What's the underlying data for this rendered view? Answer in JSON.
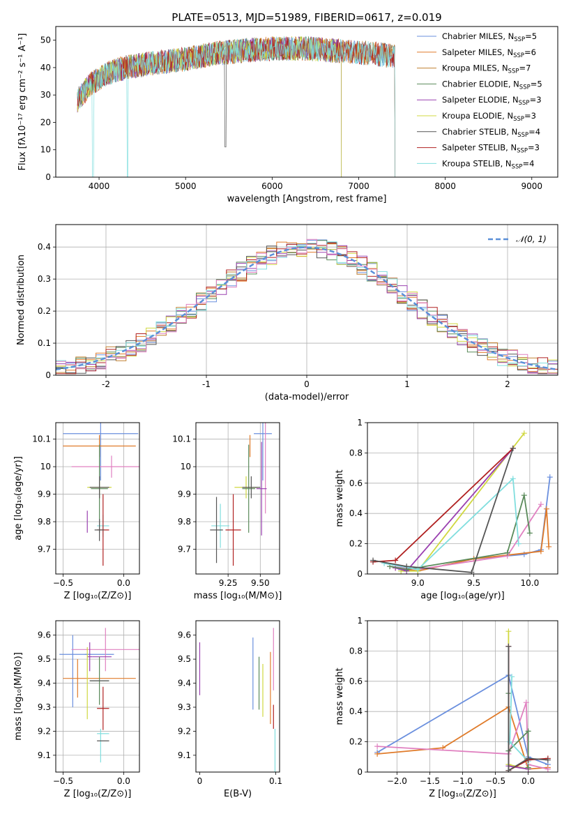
{
  "colors": [
    "#6a8fde",
    "#e07b2a",
    "#c08030",
    "#5a8a5a",
    "#9a40b0",
    "#d0d840",
    "#555555",
    "#b02020",
    "#80dede",
    "#e080c0"
  ],
  "chart_data": [
    {
      "id": "spectrum",
      "type": "line",
      "title": "PLATE=0513, MJD=51989, FIBERID=0617, z=0.019",
      "xlabel": "wavelength [Angstrom, rest frame]",
      "ylabel": "Flux [fλ10⁻¹⁷ erg cm⁻² s⁻¹ A⁻¹]",
      "xlim": [
        3500,
        9300
      ],
      "ylim": [
        0,
        55
      ],
      "xticks": [
        4000,
        5000,
        6000,
        7000,
        8000,
        9000
      ],
      "yticks": [
        0,
        10,
        20,
        30,
        40,
        50
      ],
      "legend_position": "upper-right",
      "continuum": {
        "x": [
          3750,
          3900,
          4100,
          4300,
          4500,
          4700,
          5000,
          5300,
          5600,
          6000,
          6400,
          6800,
          7200,
          7420
        ],
        "y": [
          28,
          34,
          38,
          40,
          41,
          42,
          43,
          45,
          46,
          47,
          47,
          46,
          45,
          44
        ]
      },
      "series": [
        {
          "name": "Chabrier MILES, N",
          "sub": "SSP",
          "suffix": "=5",
          "xmax": 7420
        },
        {
          "name": "Salpeter MILES, N",
          "sub": "SSP",
          "suffix": "=6",
          "xmax": 7420
        },
        {
          "name": "Kroupa MILES, N",
          "sub": "SSP",
          "suffix": "=7",
          "xmax": 7420
        },
        {
          "name": "Chabrier ELODIE, N",
          "sub": "SSP",
          "suffix": "=5",
          "xmax": 6800
        },
        {
          "name": "Salpeter ELODIE, N",
          "sub": "SSP",
          "suffix": "=3",
          "xmax": 6800
        },
        {
          "name": "Kroupa ELODIE, N",
          "sub": "SSP",
          "suffix": "=3",
          "xmax": 6800
        },
        {
          "name": "Chabrier STELIB, N",
          "sub": "SSP",
          "suffix": "=4",
          "xmax": 7420
        },
        {
          "name": "Salpeter STELIB, N",
          "sub": "SSP",
          "suffix": "=3",
          "xmax": 7420
        },
        {
          "name": "Kroupa STELIB, N",
          "sub": "SSP",
          "suffix": "=4",
          "xmax": 7420
        }
      ]
    },
    {
      "id": "residuals",
      "type": "line",
      "xlabel": "(data-model)/error",
      "ylabel": "Normed distribution",
      "xlim": [
        -2.5,
        2.5
      ],
      "ylim": [
        0,
        0.47
      ],
      "xticks": [
        -2,
        -1,
        0,
        1,
        2
      ],
      "yticks": [
        0.0,
        0.1,
        0.2,
        0.3,
        0.4
      ],
      "grid": true,
      "legend": "𝒩(0, 1)",
      "legend_position": "upper-right",
      "reference": {
        "type": "gaussian",
        "mean": 0,
        "sigma": 1
      },
      "bin_width": 0.1
    },
    {
      "id": "age-vs-Z",
      "type": "scatter",
      "xlabel": "Z [log₁₀(Z/Z⊙)]",
      "ylabel": "age  [log₁₀(age/yr)]",
      "xlim": [
        -0.56,
        0.13
      ],
      "ylim": [
        9.61,
        10.16
      ],
      "xticks": [
        -0.5,
        0.0
      ],
      "xticklabels": [
        "−0.5",
        "0.0"
      ],
      "yticks": [
        9.7,
        9.8,
        9.9,
        10.0,
        10.1
      ],
      "grid": true,
      "points": [
        {
          "c": 0,
          "x": -0.19,
          "y": 10.12,
          "xerr": 0.31,
          "yerr": 0.17
        },
        {
          "c": 1,
          "x": -0.2,
          "y": 10.075,
          "xerr": 0.3,
          "yerr": 0.04
        },
        {
          "c": 9,
          "x": -0.1,
          "y": 10.0,
          "xerr": 0.33,
          "yerr": 0.04
        },
        {
          "c": 5,
          "x": -0.2,
          "y": 9.925,
          "xerr": 0.1,
          "yerr": 0.04
        },
        {
          "c": 3,
          "x": -0.2,
          "y": 9.92,
          "xerr": 0.07,
          "yerr": 0.16
        },
        {
          "c": 6,
          "x": -0.2,
          "y": 9.925,
          "xerr": 0.08,
          "yerr": 0.04
        },
        {
          "c": 4,
          "x": -0.3,
          "y": 9.8,
          "xerr": 0.0,
          "yerr": 0.04
        },
        {
          "c": 8,
          "x": -0.17,
          "y": 9.785,
          "xerr": 0.05,
          "yerr": 0.04
        },
        {
          "c": 7,
          "x": -0.17,
          "y": 9.77,
          "xerr": 0.05,
          "yerr": 0.13
        },
        {
          "c": 6,
          "x": -0.2,
          "y": 9.77,
          "xerr": 0.04,
          "yerr": 0.04
        }
      ]
    },
    {
      "id": "age-vs-mass",
      "type": "scatter",
      "xlabel": "mass [log₁₀(M/M⊙)]",
      "ylabel": "",
      "xlim": [
        9.0,
        9.65
      ],
      "ylim": [
        9.61,
        10.16
      ],
      "xticks": [
        9.25,
        9.5
      ],
      "xticklabels": [
        "9.25",
        "9.50"
      ],
      "yticks": [
        9.7,
        9.8,
        9.9,
        10.0,
        10.1
      ],
      "grid": true,
      "points": [
        {
          "c": 0,
          "x": 9.52,
          "y": 10.12,
          "xerr": 0.07,
          "yerr": 0.17
        },
        {
          "c": 1,
          "x": 9.42,
          "y": 10.075,
          "xerr": 0.0,
          "yerr": 0.04
        },
        {
          "c": 9,
          "x": 9.54,
          "y": 10.0,
          "xerr": 0.0,
          "yerr": 0.17
        },
        {
          "c": 5,
          "x": 9.39,
          "y": 9.925,
          "xerr": 0.09,
          "yerr": 0.04
        },
        {
          "c": 3,
          "x": 9.41,
          "y": 9.92,
          "xerr": 0.05,
          "yerr": 0.16
        },
        {
          "c": 4,
          "x": 9.51,
          "y": 9.92,
          "xerr": 0.04,
          "yerr": 0.17
        },
        {
          "c": 6,
          "x": 9.43,
          "y": 9.925,
          "xerr": 0.07,
          "yerr": 0.04
        },
        {
          "c": 8,
          "x": 9.19,
          "y": 9.785,
          "xerr": 0.07,
          "yerr": 0.08
        },
        {
          "c": 7,
          "x": 9.29,
          "y": 9.77,
          "xerr": 0.06,
          "yerr": 0.13
        },
        {
          "c": 6,
          "x": 9.16,
          "y": 9.77,
          "xerr": 0.05,
          "yerr": 0.12
        }
      ]
    },
    {
      "id": "weight-vs-age",
      "type": "line",
      "xlabel": "age  [log₁₀(age/yr)]",
      "ylabel": "mass weight",
      "xlim": [
        8.55,
        10.25
      ],
      "ylim": [
        0,
        1.0
      ],
      "xticks": [
        9.0,
        9.5,
        10.0
      ],
      "xticklabels": [
        "9.0",
        "9.5",
        "10.0"
      ],
      "yticks": [
        0.0,
        0.2,
        0.4,
        0.6,
        0.8,
        1.0
      ],
      "grid": true,
      "series": [
        {
          "c": 0,
          "x": [
            8.85,
            9.0,
            9.5,
            9.95,
            10.1,
            10.18
          ],
          "y": [
            0.03,
            0.02,
            0.1,
            0.13,
            0.16,
            0.64
          ]
        },
        {
          "c": 1,
          "x": [
            8.8,
            9.0,
            9.5,
            10.1,
            10.15,
            10.17
          ],
          "y": [
            0.04,
            0.02,
            0.1,
            0.15,
            0.43,
            0.18
          ]
        },
        {
          "c": 9,
          "x": [
            8.75,
            9.0,
            9.8,
            10.1
          ],
          "y": [
            0.05,
            0.03,
            0.12,
            0.46
          ]
        },
        {
          "c": 5,
          "x": [
            8.85,
            9.0,
            9.95
          ],
          "y": [
            0.02,
            0.02,
            0.93
          ]
        },
        {
          "c": 4,
          "x": [
            8.8,
            8.9,
            9.85
          ],
          "y": [
            0.04,
            0.02,
            0.83
          ]
        },
        {
          "c": 3,
          "x": [
            8.75,
            8.9,
            9.8,
            9.95,
            10.0
          ],
          "y": [
            0.05,
            0.03,
            0.14,
            0.52,
            0.27
          ]
        },
        {
          "c": 8,
          "x": [
            8.7,
            9.0,
            9.85,
            9.9
          ],
          "y": [
            0.07,
            0.03,
            0.63,
            0.2
          ]
        },
        {
          "c": 7,
          "x": [
            8.6,
            8.8,
            9.85
          ],
          "y": [
            0.08,
            0.09,
            0.83
          ]
        },
        {
          "c": 6,
          "x": [
            8.6,
            8.9,
            9.48,
            9.85
          ],
          "y": [
            0.09,
            0.05,
            0.01,
            0.83
          ]
        }
      ]
    },
    {
      "id": "mass-vs-Z",
      "type": "scatter",
      "xlabel": "Z [log₁₀(Z/Z⊙)]",
      "ylabel": "mass [log₁₀(M/M⊙)]",
      "xlim": [
        -0.56,
        0.13
      ],
      "ylim": [
        9.03,
        9.66
      ],
      "xticks": [
        -0.5,
        0.0
      ],
      "xticklabels": [
        "−0.5",
        "0.0"
      ],
      "yticks": [
        9.1,
        9.2,
        9.3,
        9.4,
        9.5,
        9.6
      ],
      "grid": true,
      "points": [
        {
          "c": 0,
          "x": -0.4,
          "y": 9.52,
          "xerr": 0.13,
          "yerr": 0.0
        },
        {
          "c": 0,
          "x": -0.2,
          "y": 9.52,
          "xerr": 0.12,
          "yerr": 0.0
        },
        {
          "c": 0,
          "x": -0.42,
          "y": 9.45,
          "xerr": 0.0,
          "yerr": 0.15
        },
        {
          "c": 9,
          "x": -0.15,
          "y": 9.54,
          "xerr": 0.28,
          "yerr": 0.09
        },
        {
          "c": 4,
          "x": -0.28,
          "y": 9.51,
          "xerr": 0.02,
          "yerr": 0.06
        },
        {
          "c": 4,
          "x": -0.18,
          "y": 9.51,
          "xerr": 0.08,
          "yerr": 0.0
        },
        {
          "c": 1,
          "x": -0.2,
          "y": 9.42,
          "xerr": 0.3,
          "yerr": 0.0
        },
        {
          "c": 1,
          "x": -0.38,
          "y": 9.42,
          "xerr": 0.0,
          "yerr": 0.08
        },
        {
          "c": 5,
          "x": -0.3,
          "y": 9.4,
          "xerr": 0.0,
          "yerr": 0.15
        },
        {
          "c": 3,
          "x": -0.2,
          "y": 9.41,
          "xerr": 0.08,
          "yerr": 0.1
        },
        {
          "c": 6,
          "x": -0.2,
          "y": 9.41,
          "xerr": 0.08,
          "yerr": 0.0
        },
        {
          "c": 7,
          "x": -0.17,
          "y": 9.295,
          "xerr": 0.05,
          "yerr": 0.09
        },
        {
          "c": 8,
          "x": -0.17,
          "y": 9.19,
          "xerr": 0.05,
          "yerr": 0.0
        },
        {
          "c": 8,
          "x": -0.19,
          "y": 9.14,
          "xerr": 0.0,
          "yerr": 0.07
        },
        {
          "c": 6,
          "x": -0.17,
          "y": 9.16,
          "xerr": 0.05,
          "yerr": 0.0
        }
      ]
    },
    {
      "id": "mass-vs-EBV",
      "type": "scatter",
      "xlabel": "E(B-V)",
      "ylabel": "",
      "xlim": [
        -0.005,
        0.105
      ],
      "ylim": [
        9.03,
        9.66
      ],
      "xticks": [
        0,
        0.1
      ],
      "xticklabels": [
        "0",
        "0.1"
      ],
      "yticks": [
        9.1,
        9.2,
        9.3,
        9.4,
        9.5,
        9.6
      ],
      "grid": false,
      "points": [
        {
          "c": 4,
          "x": 0.0,
          "y": 9.46,
          "xerr": 0.0,
          "yerr": 0.11
        },
        {
          "c": 0,
          "x": 0.07,
          "y": 9.44,
          "xerr": 0.0,
          "yerr": 0.15
        },
        {
          "c": 3,
          "x": 0.078,
          "y": 9.4,
          "xerr": 0.0,
          "yerr": 0.11
        },
        {
          "c": 5,
          "x": 0.083,
          "y": 9.37,
          "xerr": 0.0,
          "yerr": 0.11
        },
        {
          "c": 1,
          "x": 0.093,
          "y": 9.38,
          "xerr": 0.0,
          "yerr": 0.15
        },
        {
          "c": 9,
          "x": 0.097,
          "y": 9.5,
          "xerr": 0.0,
          "yerr": 0.13
        },
        {
          "c": 7,
          "x": 0.097,
          "y": 9.26,
          "xerr": 0.0,
          "yerr": 0.05
        },
        {
          "c": 8,
          "x": 0.099,
          "y": 9.12,
          "xerr": 0.0,
          "yerr": 0.09
        }
      ]
    },
    {
      "id": "weight-vs-Z",
      "type": "line",
      "xlabel": "Z [log₁₀(Z/Z⊙)]",
      "ylabel": "mass weight",
      "xlim": [
        -2.45,
        0.45
      ],
      "ylim": [
        0,
        1.0
      ],
      "xticks": [
        -2.0,
        -1.5,
        -1.0,
        -0.5,
        0.0
      ],
      "xticklabels": [
        "−2.0",
        "−1.5",
        "−1.0",
        "−0.5",
        "0.0"
      ],
      "yticks": [
        0.0,
        0.2,
        0.4,
        0.6,
        0.8,
        1.0
      ],
      "grid": true,
      "series": [
        {
          "c": 0,
          "x": [
            -2.3,
            -0.3,
            0.0,
            0.3
          ],
          "y": [
            0.13,
            0.64,
            0.1,
            0.05
          ]
        },
        {
          "c": 1,
          "x": [
            -2.3,
            -1.3,
            -0.3,
            0.0,
            0.3
          ],
          "y": [
            0.12,
            0.16,
            0.43,
            0.02,
            0.03
          ]
        },
        {
          "c": 9,
          "x": [
            -2.3,
            -0.3,
            -0.03,
            0.0,
            0.3
          ],
          "y": [
            0.17,
            0.12,
            0.46,
            0.05,
            0.02
          ]
        },
        {
          "c": 5,
          "x": [
            -0.3,
            -0.3,
            0.0
          ],
          "y": [
            0.93,
            0.05,
            0.02
          ]
        },
        {
          "c": 4,
          "x": [
            -0.3,
            -0.3,
            0.0
          ],
          "y": [
            0.83,
            0.04,
            0.02
          ]
        },
        {
          "c": 3,
          "x": [
            -0.3,
            -0.3,
            0.0,
            0.0
          ],
          "y": [
            0.52,
            0.14,
            0.27,
            0.03
          ]
        },
        {
          "c": 8,
          "x": [
            -0.25,
            -0.28,
            0.0
          ],
          "y": [
            0.63,
            0.2,
            0.07
          ]
        },
        {
          "c": 7,
          "x": [
            -0.3,
            -0.3,
            0.0,
            0.3
          ],
          "y": [
            0.83,
            0.01,
            0.08,
            0.09
          ]
        },
        {
          "c": 6,
          "x": [
            -0.3,
            -0.3,
            0.0,
            0.3
          ],
          "y": [
            0.83,
            0.01,
            0.09,
            0.08
          ]
        }
      ]
    }
  ]
}
